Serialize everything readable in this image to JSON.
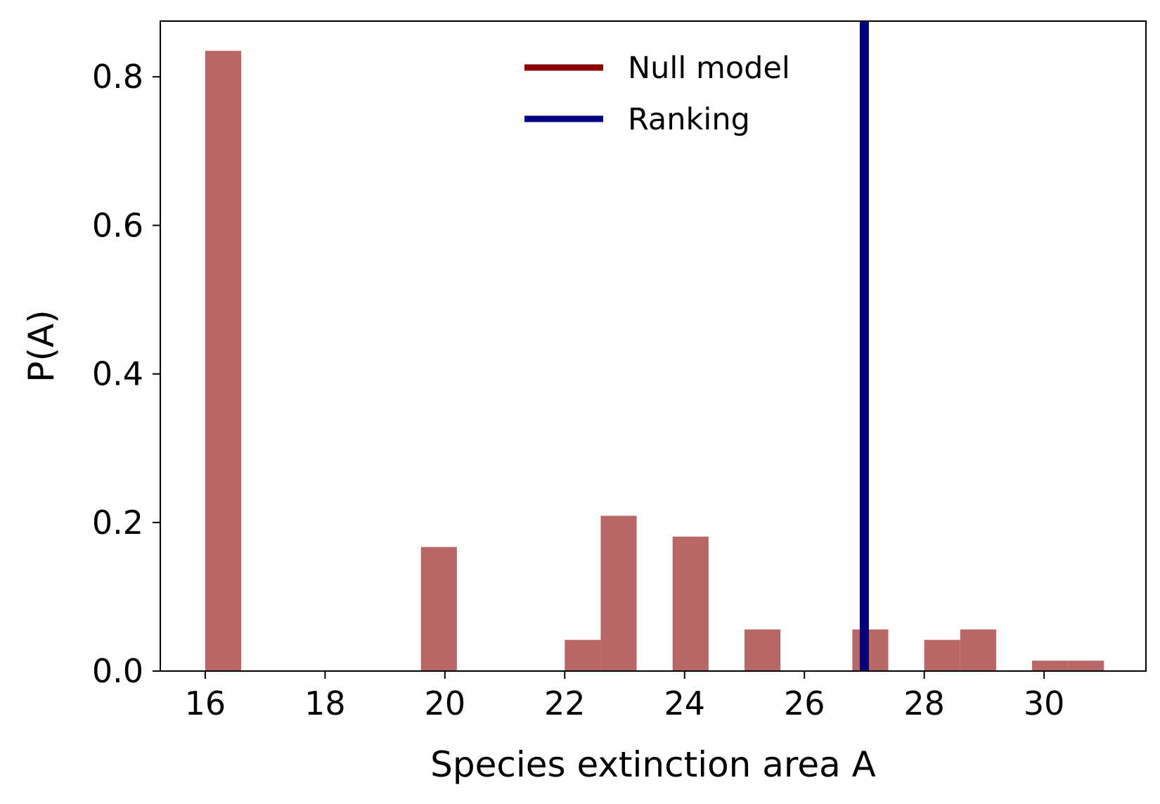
{
  "chart_data": {
    "type": "bar",
    "title": "",
    "xlabel": "Species extinction area A",
    "ylabel": "P(A)",
    "xlim": [
      15.25,
      31.7
    ],
    "ylim": [
      0,
      0.875
    ],
    "xticks": [
      16,
      18,
      20,
      22,
      24,
      26,
      28,
      30
    ],
    "xtick_labels": [
      "16",
      "18",
      "20",
      "22",
      "24",
      "26",
      "28",
      "30"
    ],
    "yticks": [
      0.0,
      0.2,
      0.4,
      0.6,
      0.8
    ],
    "ytick_labels": [
      "0.0",
      "0.2",
      "0.4",
      "0.6",
      "0.8"
    ],
    "grid": false,
    "legend_position": "top-center",
    "series": [
      {
        "name": "Null model",
        "color": "#8b0000",
        "bar_color": "#b96666",
        "bins": [
          {
            "x0": 16.0,
            "x1": 16.6,
            "value": 0.835
          },
          {
            "x0": 19.6,
            "x1": 20.2,
            "value": 0.167
          },
          {
            "x0": 22.0,
            "x1": 22.6,
            "value": 0.042
          },
          {
            "x0": 22.6,
            "x1": 23.2,
            "value": 0.209
          },
          {
            "x0": 23.8,
            "x1": 24.4,
            "value": 0.181
          },
          {
            "x0": 25.0,
            "x1": 25.6,
            "value": 0.056
          },
          {
            "x0": 26.8,
            "x1": 27.4,
            "value": 0.056
          },
          {
            "x0": 28.0,
            "x1": 28.6,
            "value": 0.042
          },
          {
            "x0": 28.6,
            "x1": 29.2,
            "value": 0.056
          },
          {
            "x0": 29.8,
            "x1": 30.4,
            "value": 0.014
          },
          {
            "x0": 30.4,
            "x1": 31.0,
            "value": 0.014
          }
        ]
      },
      {
        "name": "Ranking",
        "color": "#000080",
        "type": "vline",
        "x": 27.0
      }
    ]
  }
}
